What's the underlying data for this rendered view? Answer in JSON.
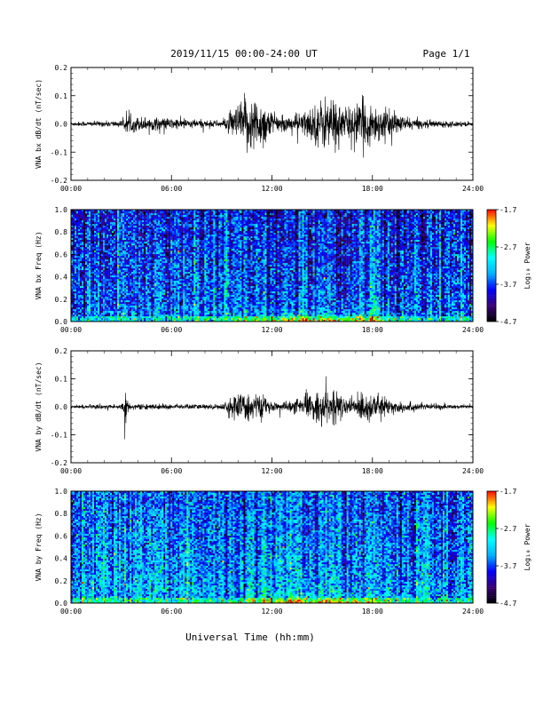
{
  "header": {
    "title": "2019/11/15  00:00-24:00 UT",
    "page": "Page 1/1"
  },
  "footer": {
    "xlabel": "Universal Time (hh:mm)"
  },
  "colors": {
    "trace": "#000000",
    "colormap": [
      "#000000",
      "#3a007a",
      "#0000ff",
      "#00b4ff",
      "#00ffff",
      "#00ff00",
      "#ffff00",
      "#ff0000"
    ]
  },
  "chart_data": [
    {
      "type": "line",
      "ylabel": "VNA bx dB/dt (nT/sec)",
      "ylim": [
        -0.2,
        0.2
      ],
      "yticks": [
        "0.2",
        "0.1",
        "0.0",
        "-0.1",
        "-0.2"
      ],
      "yticks_values": [
        0.2,
        0.1,
        0.0,
        -0.1,
        -0.2
      ],
      "xlim": [
        0,
        24
      ],
      "xticks": [
        "00:00",
        "06:00",
        "12:00",
        "18:00",
        "24:00"
      ],
      "envelope": {
        "hours": [
          0,
          3.0,
          3.3,
          9.0,
          9.5,
          10.5,
          11.5,
          12.0,
          12.5,
          13.0,
          14.0,
          15.0,
          15.5,
          16.5,
          17.5,
          19.0,
          20.0,
          21.0,
          24
        ],
        "amplitude": [
          0.008,
          0.012,
          0.03,
          0.012,
          0.04,
          0.11,
          0.09,
          0.045,
          0.025,
          0.03,
          0.05,
          0.095,
          0.11,
          0.06,
          0.09,
          0.05,
          0.025,
          0.015,
          0.008
        ]
      }
    },
    {
      "type": "heatmap",
      "ylabel": "VNA bx Freq (Hz)",
      "ylim": [
        0,
        1.0
      ],
      "yticks": [
        "1.0",
        "0.8",
        "0.6",
        "0.4",
        "0.2",
        "0.0"
      ],
      "yticks_values": [
        1.0,
        0.8,
        0.6,
        0.4,
        0.2,
        0.0
      ],
      "xlim": [
        0,
        24
      ],
      "xticks": [
        "00:00",
        "06:00",
        "12:00",
        "18:00",
        "24:00"
      ],
      "colorbar": {
        "label": "Log₁₀ Power",
        "range": [
          -4.7,
          -1.7
        ],
        "ticks": [
          "-1.7",
          "-2.7",
          "-3.7",
          "-4.7"
        ],
        "ticks_values": [
          -1.7,
          -2.7,
          -3.7,
          -4.7
        ]
      },
      "baseline_power": -3.6,
      "low_freq_enhancement": {
        "hours": [
          9,
          21
        ],
        "peak_power": -2.4
      }
    },
    {
      "type": "line",
      "ylabel": "VNA by dB/dt (nT/sec)",
      "ylim": [
        -0.2,
        0.2
      ],
      "yticks": [
        "0.2",
        "0.1",
        "0.0",
        "-0.1",
        "-0.2"
      ],
      "yticks_values": [
        0.2,
        0.1,
        0.0,
        -0.1,
        -0.2
      ],
      "xlim": [
        0,
        24
      ],
      "xticks": [
        "00:00",
        "06:00",
        "12:00",
        "18:00",
        "24:00"
      ],
      "envelope": {
        "hours": [
          0,
          3.0,
          3.25,
          3.5,
          9.0,
          9.5,
          10.5,
          11.5,
          12.0,
          13.0,
          14.0,
          15.0,
          15.5,
          16.5,
          17.5,
          19.0,
          21.0,
          24
        ],
        "amplitude": [
          0.006,
          0.01,
          0.06,
          0.01,
          0.01,
          0.035,
          0.06,
          0.04,
          0.015,
          0.02,
          0.04,
          0.06,
          0.07,
          0.03,
          0.06,
          0.03,
          0.012,
          0.006
        ]
      }
    },
    {
      "type": "heatmap",
      "ylabel": "VNA by Freq (Hz)",
      "ylim": [
        0,
        1.0
      ],
      "yticks": [
        "1.0",
        "0.8",
        "0.6",
        "0.4",
        "0.2",
        "0.0"
      ],
      "yticks_values": [
        1.0,
        0.8,
        0.6,
        0.4,
        0.2,
        0.0
      ],
      "xlim": [
        0,
        24
      ],
      "xticks": [
        "00:00",
        "06:00",
        "12:00",
        "18:00",
        "24:00"
      ],
      "colorbar": {
        "label": "Log₁₀ Power",
        "range": [
          -4.7,
          -1.7
        ],
        "ticks": [
          "-1.7",
          "-2.7",
          "-3.7",
          "-4.7"
        ],
        "ticks_values": [
          -1.7,
          -2.7,
          -3.7,
          -4.7
        ]
      },
      "baseline_power": -3.4,
      "low_freq_enhancement": {
        "hours": [
          9,
          21
        ],
        "peak_power": -2.5
      }
    }
  ]
}
